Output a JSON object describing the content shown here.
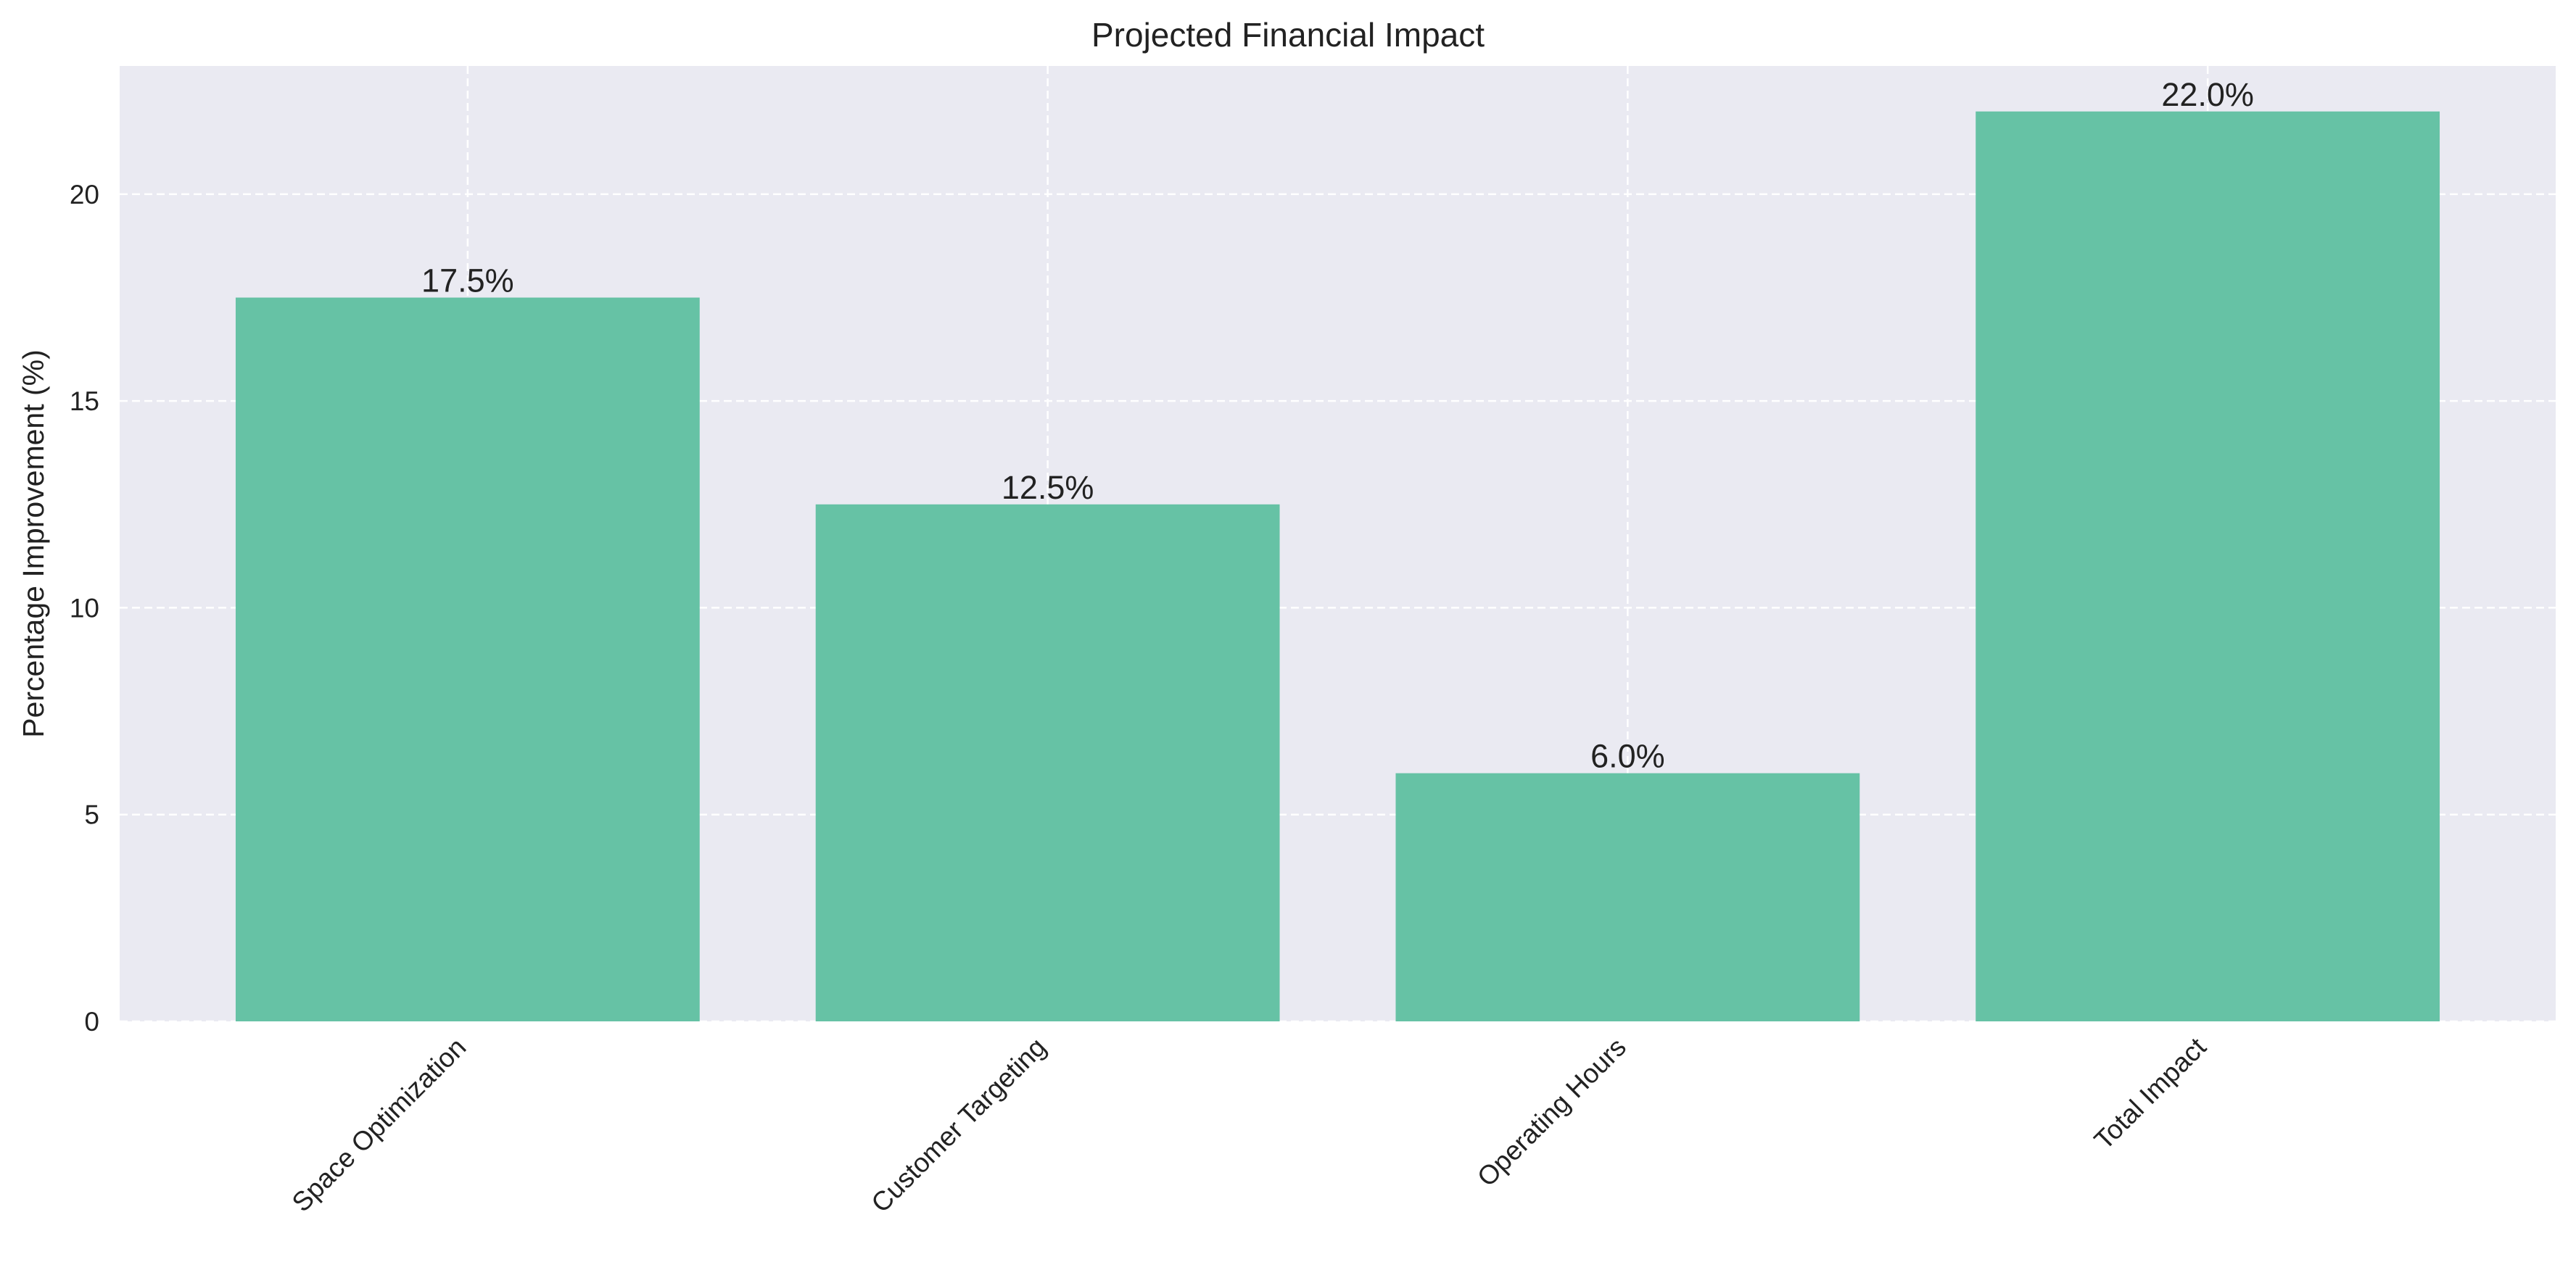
{
  "chart_data": {
    "type": "bar",
    "title": "Projected Financial Impact",
    "xlabel": "",
    "ylabel": "Percentage Improvement (%)",
    "categories": [
      "Space Optimization",
      "Customer Targeting",
      "Operating Hours",
      "Total Impact"
    ],
    "values": [
      17.5,
      12.5,
      6.0,
      22.0
    ],
    "data_labels": [
      "17.5%",
      "12.5%",
      "6.0%",
      "22.0%"
    ],
    "ylim": [
      0,
      23.1
    ],
    "yticks": [
      0,
      5,
      10,
      15,
      20
    ],
    "grid": true,
    "legend": "none",
    "colors": {
      "bar": "#66c2a5",
      "plot_background": "#eaeaf2",
      "grid": "#ffffff"
    }
  }
}
